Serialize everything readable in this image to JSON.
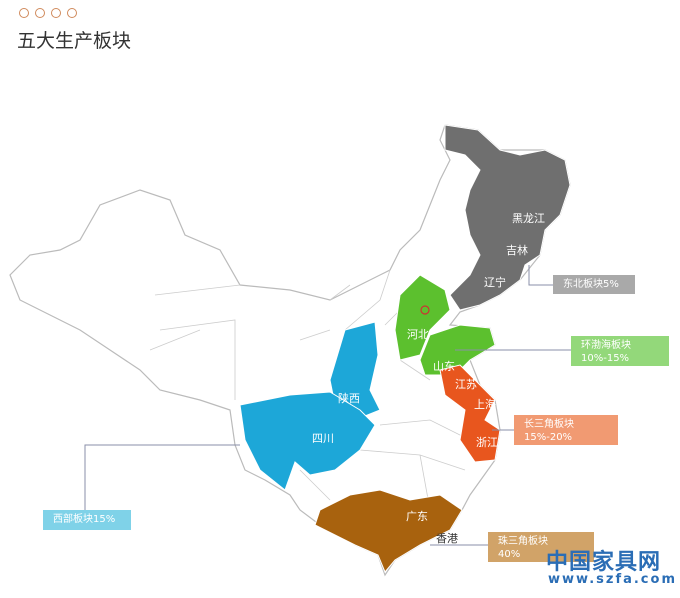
{
  "title": "五大生产板块",
  "colors": {
    "northeast": "#6f6f6f",
    "bohai": "#5cc02e",
    "yangtze": "#e8561e",
    "west": "#1da7d8",
    "pearl": "#a8620e"
  },
  "labels": {
    "heilongjiang": "黑龙江",
    "jilin": "吉林",
    "liaoning": "辽宁",
    "hebei": "河北",
    "shandong": "山东",
    "jiangsu": "江苏",
    "shanghai": "上海",
    "zhejiang": "浙江",
    "shaanxi": "陕西",
    "sichuan": "四川",
    "guangdong": "广东",
    "hongkong": "香港"
  },
  "callouts": {
    "northeast": {
      "name": "东北板块5%"
    },
    "bohai": {
      "name": "环渤海板块",
      "share": "10%-15%"
    },
    "yangtze": {
      "name": "长三角板块",
      "share": "15%-20%"
    },
    "west": {
      "name": "西部板块15%"
    },
    "pearl": {
      "name": "珠三角板块",
      "share": "40%"
    }
  },
  "watermark": {
    "name": "中国家具网",
    "url": "www.szfa.com"
  }
}
